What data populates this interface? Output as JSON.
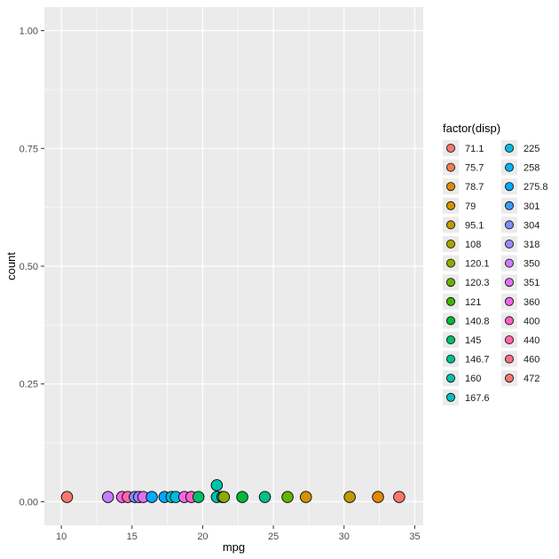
{
  "chart_data": {
    "type": "scatter",
    "xlabel": "mpg",
    "ylabel": "count",
    "xlim": [
      8.8,
      35.6
    ],
    "ylim": [
      -0.05,
      1.05
    ],
    "xticks": [
      10,
      15,
      20,
      25,
      30,
      35
    ],
    "xtick_labels": [
      "10",
      "15",
      "20",
      "25",
      "30",
      "35"
    ],
    "yticks": [
      0.0,
      0.25,
      0.5,
      0.75,
      1.0
    ],
    "ytick_labels": [
      "0.00",
      "0.25",
      "0.50",
      "0.75",
      "1.00"
    ],
    "grid": true,
    "background": "#ebebeb",
    "gridline_color": "#ffffff",
    "point_outline": "#000000",
    "legend": {
      "title": "factor(disp)",
      "placement": "right",
      "columns": 2,
      "entries": [
        {
          "label": "71.1",
          "color": "#F8766D"
        },
        {
          "label": "75.7",
          "color": "#F07E4A"
        },
        {
          "label": "78.7",
          "color": "#E38900"
        },
        {
          "label": "79",
          "color": "#D39200"
        },
        {
          "label": "95.1",
          "color": "#C09B00"
        },
        {
          "label": "108",
          "color": "#A8A200"
        },
        {
          "label": "120.1",
          "color": "#8CAB00"
        },
        {
          "label": "120.3",
          "color": "#66B200"
        },
        {
          "label": "121",
          "color": "#3AB800"
        },
        {
          "label": "140.8",
          "color": "#00BA38"
        },
        {
          "label": "145",
          "color": "#00BE67"
        },
        {
          "label": "146.7",
          "color": "#00C08B"
        },
        {
          "label": "160",
          "color": "#00C1AB"
        },
        {
          "label": "167.6",
          "color": "#00BFC4"
        },
        {
          "label": "225",
          "color": "#00BBDC"
        },
        {
          "label": "258",
          "color": "#00B4EF"
        },
        {
          "label": "275.8",
          "color": "#00A9FF"
        },
        {
          "label": "301",
          "color": "#3D9AFF"
        },
        {
          "label": "304",
          "color": "#7B8FFF"
        },
        {
          "label": "318",
          "color": "#9E84FF"
        },
        {
          "label": "350",
          "color": "#C77CFF"
        },
        {
          "label": "351",
          "color": "#E36EF6"
        },
        {
          "label": "360",
          "color": "#F166E8"
        },
        {
          "label": "400",
          "color": "#FF61C3"
        },
        {
          "label": "440",
          "color": "#FF67A4"
        },
        {
          "label": "460",
          "color": "#F86D8B"
        },
        {
          "label": "472",
          "color": "#F8766D"
        }
      ]
    },
    "points": [
      {
        "x": 10.4,
        "y": 0.01,
        "disp": "472"
      },
      {
        "x": 13.3,
        "y": 0.01,
        "disp": "350"
      },
      {
        "x": 14.3,
        "y": 0.01,
        "disp": "360"
      },
      {
        "x": 14.7,
        "y": 0.01,
        "disp": "440"
      },
      {
        "x": 15.2,
        "y": 0.01,
        "disp": "304"
      },
      {
        "x": 15.5,
        "y": 0.01,
        "disp": "318"
      },
      {
        "x": 15.8,
        "y": 0.01,
        "disp": "351"
      },
      {
        "x": 16.4,
        "y": 0.01,
        "disp": "275.8"
      },
      {
        "x": 17.3,
        "y": 0.01,
        "disp": "275.8"
      },
      {
        "x": 17.8,
        "y": 0.01,
        "disp": "167.6"
      },
      {
        "x": 18.1,
        "y": 0.01,
        "disp": "225"
      },
      {
        "x": 18.7,
        "y": 0.01,
        "disp": "360"
      },
      {
        "x": 19.2,
        "y": 0.01,
        "disp": "400"
      },
      {
        "x": 19.7,
        "y": 0.01,
        "disp": "145"
      },
      {
        "x": 21.0,
        "y": 0.035,
        "disp": "160"
      },
      {
        "x": 21.0,
        "y": 0.01,
        "disp": "160"
      },
      {
        "x": 21.4,
        "y": 0.01,
        "disp": "258"
      },
      {
        "x": 21.5,
        "y": 0.01,
        "disp": "120.1"
      },
      {
        "x": 22.8,
        "y": 0.01,
        "disp": "140.8"
      },
      {
        "x": 24.4,
        "y": 0.01,
        "disp": "146.7"
      },
      {
        "x": 26.0,
        "y": 0.01,
        "disp": "120.3"
      },
      {
        "x": 27.3,
        "y": 0.01,
        "disp": "79"
      },
      {
        "x": 30.4,
        "y": 0.01,
        "disp": "95.1"
      },
      {
        "x": 32.4,
        "y": 0.01,
        "disp": "78.7"
      },
      {
        "x": 33.9,
        "y": 0.01,
        "disp": "71.1"
      }
    ]
  }
}
